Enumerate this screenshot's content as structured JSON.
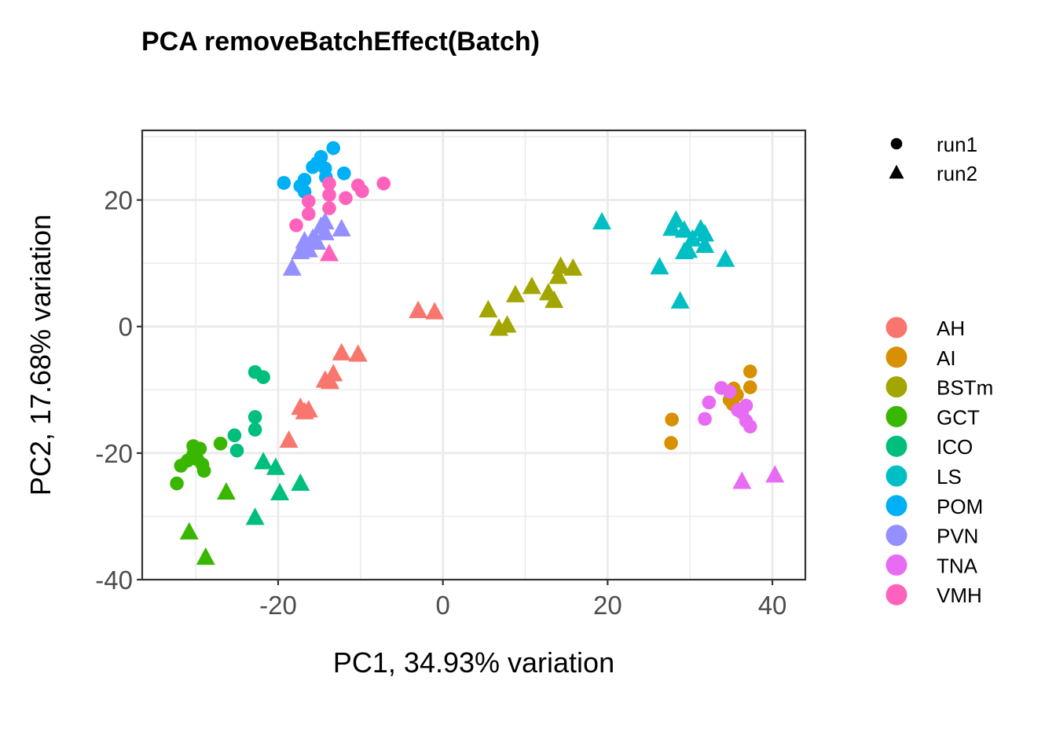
{
  "chart_data": {
    "type": "scatter",
    "title": "PCA removeBatchEffect(Batch)",
    "xlabel": "PC1, 34.93% variation",
    "ylabel": "PC2, 17.68% variation",
    "xlim": [
      -36.5,
      44
    ],
    "ylim": [
      -40,
      31
    ],
    "x_ticks": [
      -20,
      0,
      20,
      40
    ],
    "x_tick_labels": [
      "-20",
      "0",
      "20",
      "40"
    ],
    "y_ticks": [
      -40,
      -20,
      0,
      20
    ],
    "y_tick_labels": [
      "-40",
      "-20",
      "0",
      "20"
    ],
    "grid": true,
    "legend_position": "right",
    "shape_legend": [
      {
        "label": "run1",
        "shape": "circle"
      },
      {
        "label": "run2",
        "shape": "triangle"
      }
    ],
    "color_legend": [
      {
        "label": "AH",
        "color": "#F8766D"
      },
      {
        "label": "AI",
        "color": "#D89000"
      },
      {
        "label": "BSTm",
        "color": "#A3A500"
      },
      {
        "label": "GCT",
        "color": "#39B600"
      },
      {
        "label": "ICO",
        "color": "#00BF7D"
      },
      {
        "label": "LS",
        "color": "#00BFC4"
      },
      {
        "label": "POM",
        "color": "#00B0F6"
      },
      {
        "label": "PVN",
        "color": "#9590FF"
      },
      {
        "label": "TNA",
        "color": "#E76BF3"
      },
      {
        "label": "VMH",
        "color": "#FF62BC"
      }
    ],
    "series": [
      {
        "name": "AH",
        "color": "#F8766D",
        "points": [
          {
            "x": -3,
            "y": 2.5,
            "shape": "triangle"
          },
          {
            "x": -1,
            "y": 2.3,
            "shape": "triangle"
          },
          {
            "x": -12.3,
            "y": -4.2,
            "shape": "triangle"
          },
          {
            "x": -10.3,
            "y": -4.4,
            "shape": "triangle"
          },
          {
            "x": -13.3,
            "y": -7.5,
            "shape": "triangle"
          },
          {
            "x": -14.3,
            "y": -8.5,
            "shape": "triangle"
          },
          {
            "x": -13.7,
            "y": -8.7,
            "shape": "triangle"
          },
          {
            "x": -17.3,
            "y": -12.8,
            "shape": "triangle"
          },
          {
            "x": -16.3,
            "y": -13.2,
            "shape": "triangle"
          },
          {
            "x": -16.8,
            "y": -13.5,
            "shape": "triangle"
          },
          {
            "x": -18.7,
            "y": -18,
            "shape": "triangle"
          }
        ]
      },
      {
        "name": "AI",
        "color": "#D89000",
        "points": [
          {
            "x": 37.3,
            "y": -7.1,
            "shape": "circle"
          },
          {
            "x": 37.3,
            "y": -9.6,
            "shape": "circle"
          },
          {
            "x": 35.3,
            "y": -9.8,
            "shape": "circle"
          },
          {
            "x": 35.7,
            "y": -10.8,
            "shape": "circle"
          },
          {
            "x": 34.8,
            "y": -11.6,
            "shape": "circle"
          },
          {
            "x": 35.2,
            "y": -12.3,
            "shape": "circle"
          },
          {
            "x": 27.8,
            "y": -14.7,
            "shape": "circle"
          },
          {
            "x": 27.7,
            "y": -18.4,
            "shape": "circle"
          }
        ]
      },
      {
        "name": "BSTm",
        "color": "#A3A500",
        "points": [
          {
            "x": 14.3,
            "y": 9.5,
            "shape": "triangle"
          },
          {
            "x": 15.8,
            "y": 9.2,
            "shape": "triangle"
          },
          {
            "x": 14,
            "y": 7.9,
            "shape": "triangle"
          },
          {
            "x": 10.8,
            "y": 6.3,
            "shape": "triangle"
          },
          {
            "x": 12.8,
            "y": 5.3,
            "shape": "triangle"
          },
          {
            "x": 8.8,
            "y": 5,
            "shape": "triangle"
          },
          {
            "x": 13.5,
            "y": 4.1,
            "shape": "triangle"
          },
          {
            "x": 5.5,
            "y": 2.6,
            "shape": "triangle"
          },
          {
            "x": 7.8,
            "y": 0.2,
            "shape": "triangle"
          },
          {
            "x": 6.8,
            "y": -0.3,
            "shape": "triangle"
          }
        ]
      },
      {
        "name": "GCT",
        "color": "#39B600",
        "points": [
          {
            "x": -27,
            "y": -18.5,
            "shape": "circle"
          },
          {
            "x": -30.3,
            "y": -18.9,
            "shape": "circle"
          },
          {
            "x": -29.5,
            "y": -19.3,
            "shape": "circle"
          },
          {
            "x": -30.3,
            "y": -20.2,
            "shape": "circle"
          },
          {
            "x": -29.8,
            "y": -21,
            "shape": "circle"
          },
          {
            "x": -31,
            "y": -21.2,
            "shape": "circle"
          },
          {
            "x": -29.2,
            "y": -21.8,
            "shape": "circle"
          },
          {
            "x": -31.8,
            "y": -22,
            "shape": "circle"
          },
          {
            "x": -29,
            "y": -22.8,
            "shape": "circle"
          },
          {
            "x": -32.3,
            "y": -24.8,
            "shape": "circle"
          },
          {
            "x": -26.3,
            "y": -26.2,
            "shape": "triangle"
          },
          {
            "x": -30.8,
            "y": -32.5,
            "shape": "triangle"
          },
          {
            "x": -28.8,
            "y": -36.5,
            "shape": "triangle"
          }
        ]
      },
      {
        "name": "ICO",
        "color": "#00BF7D",
        "points": [
          {
            "x": -22.8,
            "y": -7.2,
            "shape": "circle"
          },
          {
            "x": -21.8,
            "y": -8,
            "shape": "circle"
          },
          {
            "x": -22.8,
            "y": -14.3,
            "shape": "circle"
          },
          {
            "x": -22.8,
            "y": -16.3,
            "shape": "circle"
          },
          {
            "x": -25.3,
            "y": -17.2,
            "shape": "circle"
          },
          {
            "x": -25,
            "y": -19.6,
            "shape": "circle"
          },
          {
            "x": -21.8,
            "y": -21.4,
            "shape": "triangle"
          },
          {
            "x": -20.3,
            "y": -22.3,
            "shape": "triangle"
          },
          {
            "x": -17.3,
            "y": -24.8,
            "shape": "triangle"
          },
          {
            "x": -19.8,
            "y": -26.3,
            "shape": "triangle"
          },
          {
            "x": -22.8,
            "y": -30.2,
            "shape": "triangle"
          }
        ]
      },
      {
        "name": "LS",
        "color": "#00BFC4",
        "points": [
          {
            "x": 19.3,
            "y": 16.5,
            "shape": "triangle"
          },
          {
            "x": 28.3,
            "y": 16.8,
            "shape": "triangle"
          },
          {
            "x": 27.8,
            "y": 15.5,
            "shape": "triangle"
          },
          {
            "x": 29.3,
            "y": 15.2,
            "shape": "triangle"
          },
          {
            "x": 31.3,
            "y": 15.4,
            "shape": "triangle"
          },
          {
            "x": 31.8,
            "y": 14.6,
            "shape": "triangle"
          },
          {
            "x": 30.3,
            "y": 13.8,
            "shape": "triangle"
          },
          {
            "x": 31.8,
            "y": 12.8,
            "shape": "triangle"
          },
          {
            "x": 29.8,
            "y": 12,
            "shape": "triangle"
          },
          {
            "x": 29.3,
            "y": 11.8,
            "shape": "triangle"
          },
          {
            "x": 34.3,
            "y": 10.6,
            "shape": "triangle"
          },
          {
            "x": 26.3,
            "y": 9.4,
            "shape": "triangle"
          },
          {
            "x": 28.8,
            "y": 4,
            "shape": "triangle"
          }
        ]
      },
      {
        "name": "POM",
        "color": "#00B0F6",
        "points": [
          {
            "x": -13.3,
            "y": 28.2,
            "shape": "circle"
          },
          {
            "x": -14.8,
            "y": 26.8,
            "shape": "circle"
          },
          {
            "x": -15.3,
            "y": 25.8,
            "shape": "circle"
          },
          {
            "x": -15.8,
            "y": 25.2,
            "shape": "circle"
          },
          {
            "x": -14.3,
            "y": 25,
            "shape": "circle"
          },
          {
            "x": -12,
            "y": 24.2,
            "shape": "circle"
          },
          {
            "x": -14.2,
            "y": 23.6,
            "shape": "circle"
          },
          {
            "x": -16.8,
            "y": 23.2,
            "shape": "circle"
          },
          {
            "x": -19.3,
            "y": 22.7,
            "shape": "circle"
          },
          {
            "x": -17.3,
            "y": 22.2,
            "shape": "circle"
          },
          {
            "x": -16.8,
            "y": 21.3,
            "shape": "circle"
          }
        ]
      },
      {
        "name": "PVN",
        "color": "#9590FF",
        "points": [
          {
            "x": -14.3,
            "y": 16.5,
            "shape": "triangle"
          },
          {
            "x": -14.8,
            "y": 15.8,
            "shape": "triangle"
          },
          {
            "x": -12.3,
            "y": 15.4,
            "shape": "triangle"
          },
          {
            "x": -14.3,
            "y": 14.8,
            "shape": "triangle"
          },
          {
            "x": -15.8,
            "y": 13.9,
            "shape": "triangle"
          },
          {
            "x": -16.8,
            "y": 13.5,
            "shape": "triangle"
          },
          {
            "x": -15.3,
            "y": 13.3,
            "shape": "triangle"
          },
          {
            "x": -16.3,
            "y": 12.1,
            "shape": "triangle"
          },
          {
            "x": -17.3,
            "y": 11.8,
            "shape": "triangle"
          },
          {
            "x": -18.3,
            "y": 9.2,
            "shape": "triangle"
          }
        ]
      },
      {
        "name": "TNA",
        "color": "#E76BF3",
        "points": [
          {
            "x": 33.8,
            "y": -9.7,
            "shape": "circle"
          },
          {
            "x": 34.8,
            "y": -10.3,
            "shape": "circle"
          },
          {
            "x": 32.3,
            "y": -12,
            "shape": "circle"
          },
          {
            "x": 36.8,
            "y": -12.5,
            "shape": "circle"
          },
          {
            "x": 35.8,
            "y": -13.2,
            "shape": "circle"
          },
          {
            "x": 36.3,
            "y": -13.6,
            "shape": "circle"
          },
          {
            "x": 31.8,
            "y": -14.6,
            "shape": "circle"
          },
          {
            "x": 36.8,
            "y": -14.9,
            "shape": "circle"
          },
          {
            "x": 37.3,
            "y": -15.8,
            "shape": "circle"
          },
          {
            "x": 36.3,
            "y": -24.5,
            "shape": "triangle"
          },
          {
            "x": 40.3,
            "y": -23.5,
            "shape": "triangle"
          }
        ]
      },
      {
        "name": "VMH",
        "color": "#FF62BC",
        "points": [
          {
            "x": -7.2,
            "y": 22.6,
            "shape": "circle"
          },
          {
            "x": -10.3,
            "y": 22.3,
            "shape": "circle"
          },
          {
            "x": -13.8,
            "y": 22.6,
            "shape": "circle"
          },
          {
            "x": -9.8,
            "y": 21.4,
            "shape": "circle"
          },
          {
            "x": -13.8,
            "y": 20.8,
            "shape": "circle"
          },
          {
            "x": -11.8,
            "y": 20.3,
            "shape": "circle"
          },
          {
            "x": -16.3,
            "y": 19.8,
            "shape": "circle"
          },
          {
            "x": -13.8,
            "y": 18.7,
            "shape": "circle"
          },
          {
            "x": -16.3,
            "y": 17.8,
            "shape": "circle"
          },
          {
            "x": -17.8,
            "y": 16,
            "shape": "circle"
          },
          {
            "x": -13.8,
            "y": 11.5,
            "shape": "triangle"
          }
        ]
      }
    ]
  }
}
